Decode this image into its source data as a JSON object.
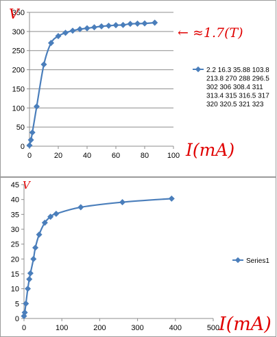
{
  "chart_data": [
    {
      "type": "line",
      "title": "",
      "xlabel": "",
      "ylabel": "",
      "xlim": [
        0,
        100
      ],
      "ylim": [
        0,
        350
      ],
      "x_ticks": [
        0,
        20,
        40,
        60,
        80,
        100
      ],
      "y_ticks": [
        0,
        50,
        100,
        150,
        200,
        250,
        300,
        350
      ],
      "grid": "horizontal",
      "legend_position": "right",
      "color": "#4a7ebb",
      "series": [
        {
          "name": "2.2 16.3 35.88 103.8 213.8 270 288 296.5 302 306 308.4 311 313.4 315 316.5 317 320 320.5 321 323",
          "legend_lines": [
            "2.2 16.3 35.88 103.8",
            "213.8 270 288 296.5",
            "302 306 308.4 311",
            "313.4 315 316.5 317",
            "320 320.5 321 323"
          ],
          "x": [
            0,
            1,
            2,
            5,
            10,
            15,
            20,
            25,
            30,
            35,
            40,
            45,
            50,
            55,
            60,
            65,
            70,
            75,
            80,
            87
          ],
          "y": [
            2.2,
            16.3,
            35.88,
            103.8,
            213.8,
            270,
            288,
            296.5,
            302,
            306,
            308.4,
            311,
            313.4,
            315,
            316.5,
            317,
            320,
            320.5,
            321,
            323
          ]
        }
      ],
      "annotations": {
        "y_unit": "V",
        "right_note": "← ≈1.7(T)",
        "x_unit": "I(mA)"
      }
    },
    {
      "type": "line",
      "title": "",
      "xlabel": "",
      "ylabel": "",
      "xlim": [
        0,
        500
      ],
      "ylim": [
        0,
        45
      ],
      "x_ticks": [
        0,
        100,
        200,
        300,
        400,
        500
      ],
      "y_ticks": [
        0,
        5,
        10,
        15,
        20,
        25,
        30,
        35,
        40,
        45
      ],
      "grid": "none",
      "legend_position": "right",
      "color": "#4a7ebb",
      "series": [
        {
          "name": "Series1",
          "legend_lines": [
            "Series1"
          ],
          "x": [
            0,
            2,
            5,
            10,
            14,
            17,
            25,
            30,
            40,
            55,
            70,
            85,
            150,
            260,
            390
          ],
          "y": [
            0.8,
            2,
            5,
            10,
            13.2,
            15.2,
            20,
            23.8,
            28.2,
            32.2,
            34.2,
            35.2,
            37.4,
            39.1,
            40.3
          ]
        }
      ],
      "annotations": {
        "y_unit": "V",
        "x_unit": "I(mA)"
      }
    }
  ]
}
